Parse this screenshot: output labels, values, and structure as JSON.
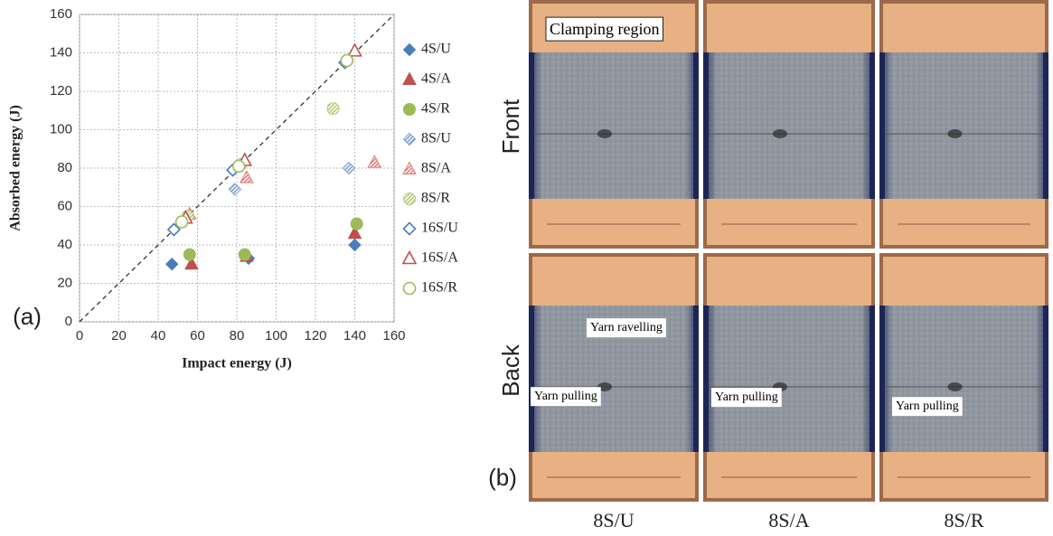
{
  "chart_data": {
    "type": "scatter",
    "xlabel": "Impact energy (J)",
    "ylabel": "Absorbed energy (J)",
    "xlim": [
      0,
      160
    ],
    "ylim": [
      0,
      160
    ],
    "xticks": [
      0,
      20,
      40,
      60,
      80,
      100,
      120,
      140,
      160
    ],
    "yticks": [
      0,
      20,
      40,
      60,
      80,
      100,
      120,
      140,
      160
    ],
    "grid": true,
    "series": [
      {
        "name": "4S/U",
        "color": "#4a7ebb",
        "marker": "diamond",
        "fill": "solid",
        "x": [
          47,
          86,
          140
        ],
        "values": [
          30,
          33,
          40
        ]
      },
      {
        "name": "4S/A",
        "color": "#c0504d",
        "marker": "triangle",
        "fill": "solid",
        "x": [
          57,
          85,
          140
        ],
        "values": [
          30,
          34,
          46
        ]
      },
      {
        "name": "4S/R",
        "color": "#9bbb59",
        "marker": "circle",
        "fill": "solid",
        "x": [
          56,
          84,
          141
        ],
        "values": [
          35,
          35,
          51
        ]
      },
      {
        "name": "8S/U",
        "color": "#7f9fd0",
        "marker": "diamond",
        "fill": "hatched",
        "x": [
          48,
          79,
          137
        ],
        "values": [
          48,
          69,
          80
        ]
      },
      {
        "name": "8S/A",
        "color": "#e07d7a",
        "marker": "triangle",
        "fill": "hatched",
        "x": [
          56,
          85,
          150
        ],
        "values": [
          56,
          75,
          83
        ]
      },
      {
        "name": "8S/R",
        "color": "#b3cc7a",
        "marker": "circle",
        "fill": "hatched",
        "x": [
          55,
          82,
          129
        ],
        "values": [
          55,
          82,
          111
        ]
      },
      {
        "name": "16S/U",
        "color": "#4a7ebb",
        "marker": "diamond",
        "fill": "open",
        "x": [
          48,
          78,
          135
        ],
        "values": [
          48,
          79,
          135
        ]
      },
      {
        "name": "16S/A",
        "color": "#c0504d",
        "marker": "triangle",
        "fill": "open",
        "x": [
          54,
          84,
          140
        ],
        "values": [
          54,
          84,
          141
        ]
      },
      {
        "name": "16S/R",
        "color": "#9bbb59",
        "marker": "circle",
        "fill": "open",
        "x": [
          52,
          81,
          136
        ],
        "values": [
          52,
          81,
          136
        ]
      }
    ]
  },
  "panel_a": {
    "label": "(a)"
  },
  "panel_b": {
    "label": "(b)",
    "rows": [
      "Front",
      "Back"
    ],
    "columns": [
      "8S/U",
      "8S/A",
      "8S/R"
    ],
    "annotations": [
      "Clamping region",
      "Yarn ravelling",
      "Yarn pulling",
      "Yarn pulling",
      "Yarn pulling"
    ]
  }
}
